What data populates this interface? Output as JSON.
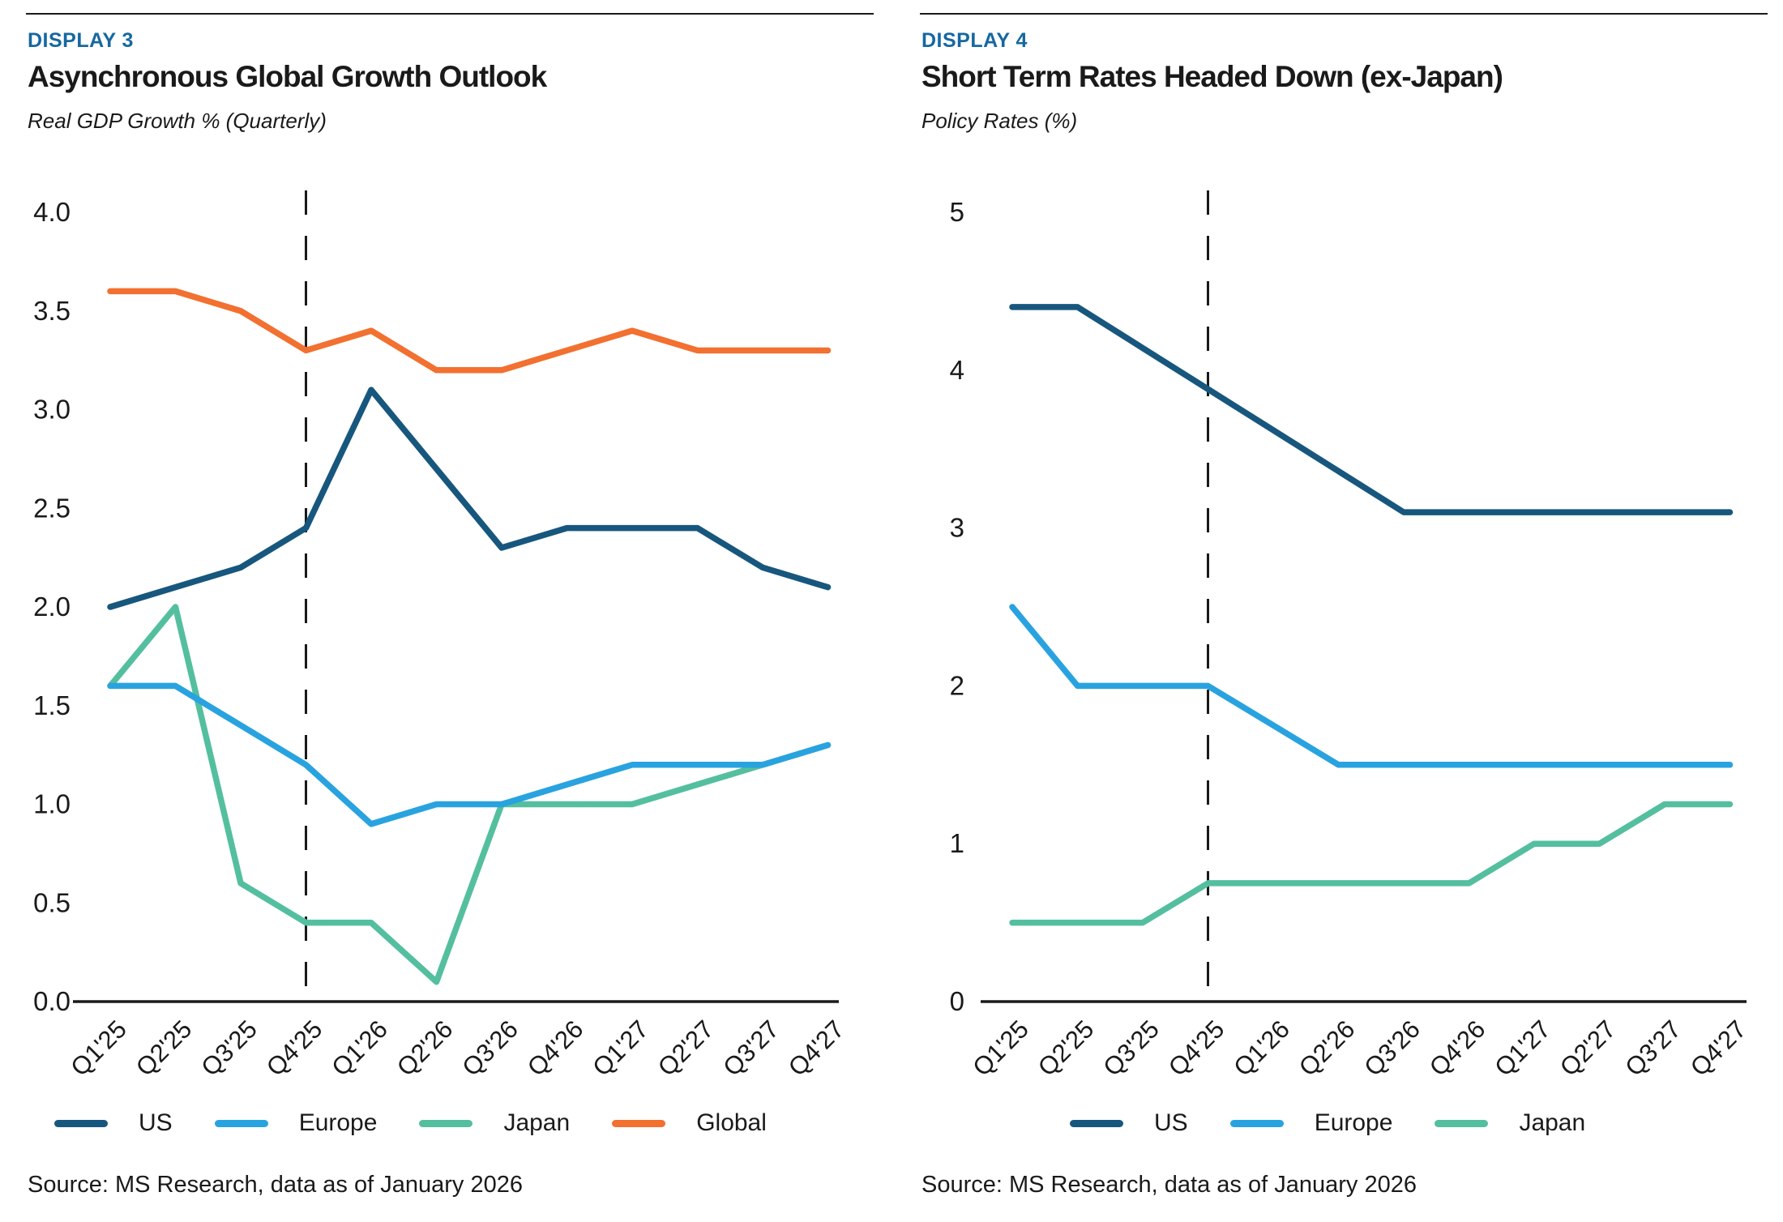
{
  "colors": {
    "heading_blue": "#1668a0",
    "text": "#1a1a1a",
    "axis": "#1a1a1a",
    "us": "#17577e",
    "europe": "#29a3df",
    "japan": "#54bf9f",
    "global": "#f27030"
  },
  "panels": [
    {
      "display_label": "DISPLAY 3",
      "title": "Asynchronous Global Growth Outlook",
      "subtitle": "Real GDP Growth % (Quarterly)",
      "source": "Source: MS Research, data as of January 2026",
      "chart_data": {
        "type": "line",
        "title": "Asynchronous Global Growth Outlook",
        "ylabel": "Real GDP Growth %",
        "categories": [
          "Q1'25",
          "Q2'25",
          "Q3'25",
          "Q4'25",
          "Q1'26",
          "Q2'26",
          "Q3'26",
          "Q4'26",
          "Q1'27",
          "Q2'27",
          "Q3'27",
          "Q4'27"
        ],
        "ylim": [
          0.0,
          4.0
        ],
        "y_ticks": [
          "4.0",
          "3.5",
          "3.0",
          "2.5",
          "2.0",
          "1.5",
          "1.0",
          "0.5",
          "0.0"
        ],
        "grid": false,
        "legend_position": "bottom",
        "dashed_vline_index": 3,
        "series": [
          {
            "name": "US",
            "color": "#17577e",
            "values": [
              2.0,
              2.1,
              2.2,
              2.4,
              3.1,
              2.7,
              2.3,
              2.4,
              2.4,
              2.4,
              2.2,
              2.1
            ]
          },
          {
            "name": "Europe",
            "color": "#29a3df",
            "values": [
              1.6,
              1.6,
              1.4,
              1.2,
              0.9,
              1.0,
              1.0,
              1.1,
              1.2,
              1.2,
              1.2,
              1.3
            ]
          },
          {
            "name": "Japan",
            "color": "#54bf9f",
            "values": [
              1.6,
              2.0,
              0.6,
              0.4,
              0.4,
              0.1,
              1.0,
              1.0,
              1.0,
              1.1,
              1.2,
              1.3
            ]
          },
          {
            "name": "Global",
            "color": "#f27030",
            "values": [
              3.6,
              3.6,
              3.5,
              3.3,
              3.4,
              3.2,
              3.2,
              3.3,
              3.4,
              3.3,
              3.3,
              3.3
            ]
          }
        ]
      }
    },
    {
      "display_label": "DISPLAY 4",
      "title": "Short Term Rates Headed Down (ex-Japan)",
      "subtitle": "Policy Rates (%)",
      "source": "Source: MS Research, data as of January 2026",
      "chart_data": {
        "type": "line",
        "title": "Short Term Rates Headed Down (ex-Japan)",
        "ylabel": "Policy Rates (%)",
        "categories": [
          "Q1'25",
          "Q2'25",
          "Q3'25",
          "Q4'25",
          "Q1'26",
          "Q2'26",
          "Q3'26",
          "Q4'26",
          "Q1'27",
          "Q2'27",
          "Q3'27",
          "Q4'27"
        ],
        "ylim": [
          0,
          5
        ],
        "y_ticks": [
          "5",
          "4",
          "3",
          "2",
          "1",
          "0"
        ],
        "grid": false,
        "legend_position": "bottom",
        "dashed_vline_index": 3,
        "series": [
          {
            "name": "US",
            "color": "#17577e",
            "values": [
              4.4,
              4.4,
              4.14,
              3.88,
              3.62,
              3.36,
              3.1,
              3.1,
              3.1,
              3.1,
              3.1,
              3.1
            ]
          },
          {
            "name": "Europe",
            "color": "#29a3df",
            "values": [
              2.5,
              2.0,
              2.0,
              2.0,
              1.75,
              1.5,
              1.5,
              1.5,
              1.5,
              1.5,
              1.5,
              1.5
            ]
          },
          {
            "name": "Japan",
            "color": "#54bf9f",
            "values": [
              0.5,
              0.5,
              0.5,
              0.75,
              0.75,
              0.75,
              0.75,
              0.75,
              1.0,
              1.0,
              1.25,
              1.25
            ]
          }
        ]
      }
    }
  ]
}
